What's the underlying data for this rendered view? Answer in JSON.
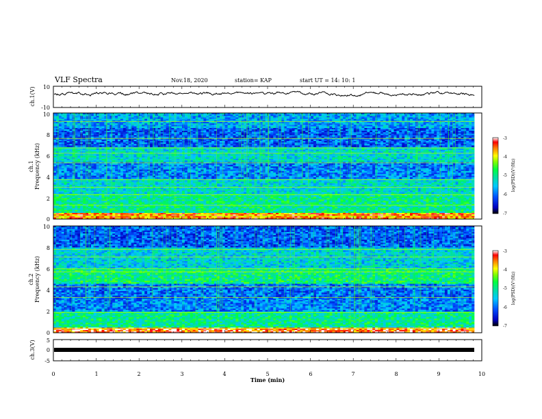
{
  "header": {
    "title": "VLF Spectra",
    "date": "Nov.18, 2020",
    "station": "station= KAP",
    "start": "start  UT  =   14: 10: 1"
  },
  "chart_data": [
    {
      "type": "line",
      "panel": "ch1-waveform",
      "ylabel": "ch.1(V)",
      "ylim": [
        -10,
        10
      ],
      "ytick_labels": [
        "10",
        "-10"
      ],
      "xlim": [
        0,
        10
      ],
      "note_series": "band-limited noise centered near +3 V, amplitude roughly ±3 V"
    },
    {
      "type": "heatmap",
      "panel": "ch1-spectrogram",
      "ylabel": "ch.1\nFrequency  (kHz)",
      "ylim": [
        0,
        10
      ],
      "ytick_labels": [
        "0",
        "2",
        "4",
        "6",
        "8",
        "10"
      ],
      "xlim": [
        0,
        9.83
      ],
      "colorbar": {
        "label": "log(PSD)(V²/Hz)",
        "range": [
          -7,
          -3
        ],
        "tick_labels": [
          "-3",
          "-4",
          "-5",
          "-6",
          "-7"
        ]
      },
      "bands_khz": [
        {
          "from": 0,
          "to": 0.6,
          "level": -3.6
        },
        {
          "from": 0.6,
          "to": 2.4,
          "level": -5.0
        },
        {
          "from": 2.4,
          "to": 3.8,
          "level": -5.3
        },
        {
          "from": 3.8,
          "to": 5.4,
          "level": -5.9
        },
        {
          "from": 5.4,
          "to": 6.8,
          "level": -5.3
        },
        {
          "from": 6.8,
          "to": 8.6,
          "level": -6.1
        },
        {
          "from": 8.6,
          "to": 10,
          "level": -5.7
        }
      ],
      "line_frequencies_khz": [
        0.3,
        1.3,
        2.3,
        3.0,
        3.7,
        5.3,
        6.2,
        6.7,
        7.6,
        9.2
      ]
    },
    {
      "type": "heatmap",
      "panel": "ch2-spectrogram",
      "ylabel": "ch.2\nFrequency  (kHz)",
      "ylim": [
        0,
        10
      ],
      "ytick_labels": [
        "0",
        "2",
        "4",
        "6",
        "8",
        "10"
      ],
      "xlim": [
        0,
        9.83
      ],
      "colorbar": {
        "label": "log(PSD)(V²/Hz)",
        "range": [
          -7,
          -3
        ],
        "tick_labels": [
          "-3",
          "-4",
          "-5",
          "-6",
          "-7"
        ]
      },
      "bands_khz": [
        {
          "from": 0,
          "to": 0.5,
          "level": -3.4
        },
        {
          "from": 0.5,
          "to": 2.0,
          "level": -5.0
        },
        {
          "from": 2.0,
          "to": 3.2,
          "level": -5.9
        },
        {
          "from": 3.2,
          "to": 4.6,
          "level": -6.0
        },
        {
          "from": 4.6,
          "to": 6.0,
          "level": -4.9
        },
        {
          "from": 6.0,
          "to": 8.0,
          "level": -5.4
        },
        {
          "from": 8.0,
          "to": 10,
          "level": -6.1
        }
      ],
      "line_frequencies_khz": [
        0.4,
        1.9,
        3.3,
        4.3,
        5.7,
        6.0,
        7.1,
        7.8
      ]
    },
    {
      "type": "line",
      "panel": "ch3-waveform",
      "ylabel": "ch.3(V)",
      "ylim": [
        -5,
        5
      ],
      "ytick_labels": [
        "5",
        "0",
        "-5"
      ],
      "xlim": [
        0,
        10
      ],
      "xlabel": "Time  (min)",
      "xtick_labels": [
        "0",
        "1",
        "2",
        "3",
        "4",
        "5",
        "6",
        "7",
        "8",
        "9",
        "10"
      ],
      "level_v": -0.8
    }
  ]
}
